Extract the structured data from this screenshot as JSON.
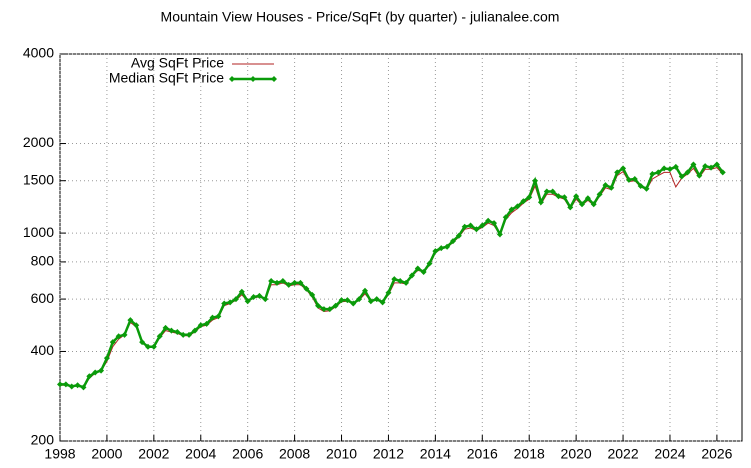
{
  "chart_data": {
    "type": "line",
    "title": "Mountain View Houses - Price/SqFt (by quarter) - julianalee.com",
    "x": [
      1998,
      1998.25,
      1998.5,
      1998.75,
      1999,
      1999.25,
      1999.5,
      1999.75,
      2000,
      2000.25,
      2000.5,
      2000.75,
      2001,
      2001.25,
      2001.5,
      2001.75,
      2002,
      2002.25,
      2002.5,
      2002.75,
      2003,
      2003.25,
      2003.5,
      2003.75,
      2004,
      2004.25,
      2004.5,
      2004.75,
      2005,
      2005.25,
      2005.5,
      2005.75,
      2006,
      2006.25,
      2006.5,
      2006.75,
      2007,
      2007.25,
      2007.5,
      2007.75,
      2008,
      2008.25,
      2008.5,
      2008.75,
      2009,
      2009.25,
      2009.5,
      2009.75,
      2010,
      2010.25,
      2010.5,
      2010.75,
      2011,
      2011.25,
      2011.5,
      2011.75,
      2012,
      2012.25,
      2012.5,
      2012.75,
      2013,
      2013.25,
      2013.5,
      2013.75,
      2014,
      2014.25,
      2014.5,
      2014.75,
      2015,
      2015.25,
      2015.5,
      2015.75,
      2016,
      2016.25,
      2016.5,
      2016.75,
      2017,
      2017.25,
      2017.5,
      2017.75,
      2018,
      2018.25,
      2018.5,
      2018.75,
      2019,
      2019.25,
      2019.5,
      2019.75,
      2020,
      2020.25,
      2020.5,
      2020.75,
      2021,
      2021.25,
      2021.5,
      2021.75,
      2022,
      2022.25,
      2022.5,
      2022.75,
      2023,
      2023.25,
      2023.5,
      2023.75,
      2024,
      2024.25,
      2024.5,
      2024.75,
      2025,
      2025.25,
      2025.5,
      2025.75,
      2026,
      2026.25
    ],
    "series": [
      {
        "name": "Avg SqFt Price",
        "color": "#b22222",
        "width": 1,
        "markers": false,
        "values": [
          308,
          308,
          305,
          306,
          302,
          325,
          338,
          345,
          370,
          415,
          440,
          455,
          500,
          485,
          430,
          415,
          412,
          445,
          470,
          465,
          460,
          452,
          452,
          465,
          485,
          490,
          510,
          520,
          570,
          580,
          595,
          620,
          590,
          605,
          610,
          600,
          670,
          670,
          680,
          665,
          670,
          670,
          645,
          610,
          560,
          545,
          548,
          565,
          588,
          590,
          578,
          595,
          625,
          590,
          595,
          585,
          620,
          680,
          680,
          675,
          715,
          750,
          740,
          780,
          860,
          885,
          895,
          930,
          970,
          1030,
          1040,
          1020,
          1045,
          1080,
          1060,
          990,
          1110,
          1170,
          1210,
          1260,
          1300,
          1440,
          1250,
          1350,
          1350,
          1320,
          1300,
          1210,
          1300,
          1240,
          1290,
          1240,
          1330,
          1420,
          1400,
          1560,
          1610,
          1490,
          1500,
          1430,
          1400,
          1520,
          1560,
          1600,
          1600,
          1430,
          1530,
          1580,
          1650,
          1540,
          1640,
          1640,
          1660,
          1580
        ]
      },
      {
        "name": "Median SqFt Price",
        "color": "#0a9b0a",
        "width": 2.5,
        "markers": true,
        "values": [
          310,
          310,
          305,
          308,
          303,
          330,
          340,
          345,
          380,
          430,
          450,
          455,
          510,
          490,
          430,
          415,
          415,
          450,
          480,
          470,
          465,
          455,
          455,
          470,
          490,
          495,
          520,
          525,
          580,
          585,
          600,
          635,
          590,
          610,
          615,
          600,
          690,
          680,
          690,
          670,
          680,
          680,
          650,
          620,
          570,
          555,
          555,
          570,
          595,
          595,
          580,
          600,
          640,
          590,
          600,
          585,
          630,
          700,
          690,
          680,
          720,
          760,
          740,
          790,
          870,
          890,
          900,
          940,
          980,
          1050,
          1060,
          1030,
          1060,
          1100,
          1080,
          990,
          1130,
          1200,
          1230,
          1280,
          1320,
          1500,
          1270,
          1380,
          1380,
          1330,
          1320,
          1220,
          1330,
          1250,
          1310,
          1250,
          1350,
          1450,
          1420,
          1600,
          1650,
          1510,
          1520,
          1440,
          1410,
          1580,
          1600,
          1650,
          1640,
          1670,
          1550,
          1600,
          1700,
          1560,
          1680,
          1660,
          1700,
          1600
        ]
      }
    ],
    "xlim": [
      1998,
      2027.07
    ],
    "xticks": [
      1998,
      2000,
      2002,
      2004,
      2006,
      2008,
      2010,
      2012,
      2014,
      2016,
      2018,
      2020,
      2022,
      2024,
      2026
    ],
    "ylim": [
      200,
      4000
    ],
    "yticks": [
      200,
      400,
      600,
      800,
      1000,
      1500,
      2000,
      4000
    ],
    "log_y": true,
    "grid": true,
    "legend": "top-left"
  }
}
